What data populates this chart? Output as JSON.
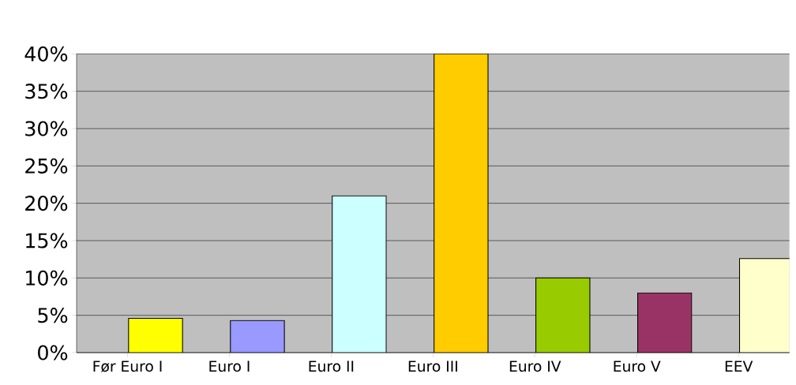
{
  "chart_data": {
    "type": "bar",
    "categories": [
      "Før Euro I",
      "Euro I",
      "Euro II",
      "Euro III",
      "Euro IV",
      "Euro V",
      "EEV"
    ],
    "values": [
      4.6,
      4.3,
      21,
      40,
      10,
      8,
      12.6
    ],
    "colors": [
      "#ffff00",
      "#9999ff",
      "#ccffff",
      "#ffcc00",
      "#99cc00",
      "#993366",
      "#ffffcc"
    ],
    "ylim": [
      0,
      40
    ],
    "yticks": [
      {
        "value": 0,
        "label": "0%"
      },
      {
        "value": 5,
        "label": "5%"
      },
      {
        "value": 10,
        "label": "10%"
      },
      {
        "value": 15,
        "label": "15%"
      },
      {
        "value": 20,
        "label": "20%"
      },
      {
        "value": 25,
        "label": "25%"
      },
      {
        "value": 30,
        "label": "30%"
      },
      {
        "value": 35,
        "label": "35%"
      },
      {
        "value": 40,
        "label": "40%"
      }
    ],
    "grid": "y"
  }
}
